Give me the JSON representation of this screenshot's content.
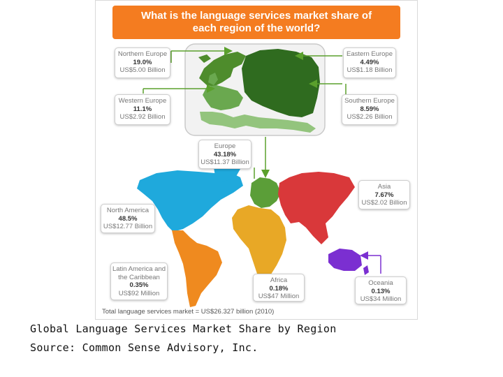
{
  "title_lines": [
    "What is the language services market share of",
    "each region of the world?"
  ],
  "regions": {
    "northern_europe": {
      "name": "Northern Europe",
      "share": "19.0%",
      "value": "US$5.00 Billion",
      "color": "#4e8c2c"
    },
    "eastern_europe": {
      "name": "Eastern Europe",
      "share": "4.49%",
      "value": "US$1.18 Billion",
      "color": "#2f6b1f"
    },
    "western_europe": {
      "name": "Western Europe",
      "share": "11.1%",
      "value": "US$2.92 Billion",
      "color": "#6aa84f"
    },
    "southern_europe": {
      "name": "Southern Europe",
      "share": "8.59%",
      "value": "US$2.26 Billion",
      "color": "#93c47d"
    },
    "europe": {
      "name": "Europe",
      "share": "43.18%",
      "value": "US$11.37 Billion",
      "color": "#5b9e38"
    },
    "asia": {
      "name": "Asia",
      "share": "7.67%",
      "value": "US$2.02 Billion",
      "color": "#d9383a"
    },
    "north_america": {
      "name": "North America",
      "share": "48.5%",
      "value": "US$12.77 Billion",
      "color": "#1fa9dc"
    },
    "latin_america": {
      "name": "Latin America and the Caribbean",
      "share": "0.35%",
      "value": "US$92 Million",
      "color": "#ef8a1f"
    },
    "africa": {
      "name": "Africa",
      "share": "0.18%",
      "value": "US$47 Million",
      "color": "#e8a826"
    },
    "oceania": {
      "name": "Oceania",
      "share": "0.13%",
      "value": "US$34 Million",
      "color": "#7b2fd1"
    }
  },
  "footer": "Total language services market = US$26.327 billion (2010)",
  "caption_line1": "Global Language Services Market Share by Region",
  "caption_line2": "Source: Common Sense Advisory, Inc.",
  "colors": {
    "banner": "#f47c20",
    "arrow": "#5aa02c",
    "oceania_arrow": "#7b2fd1"
  }
}
